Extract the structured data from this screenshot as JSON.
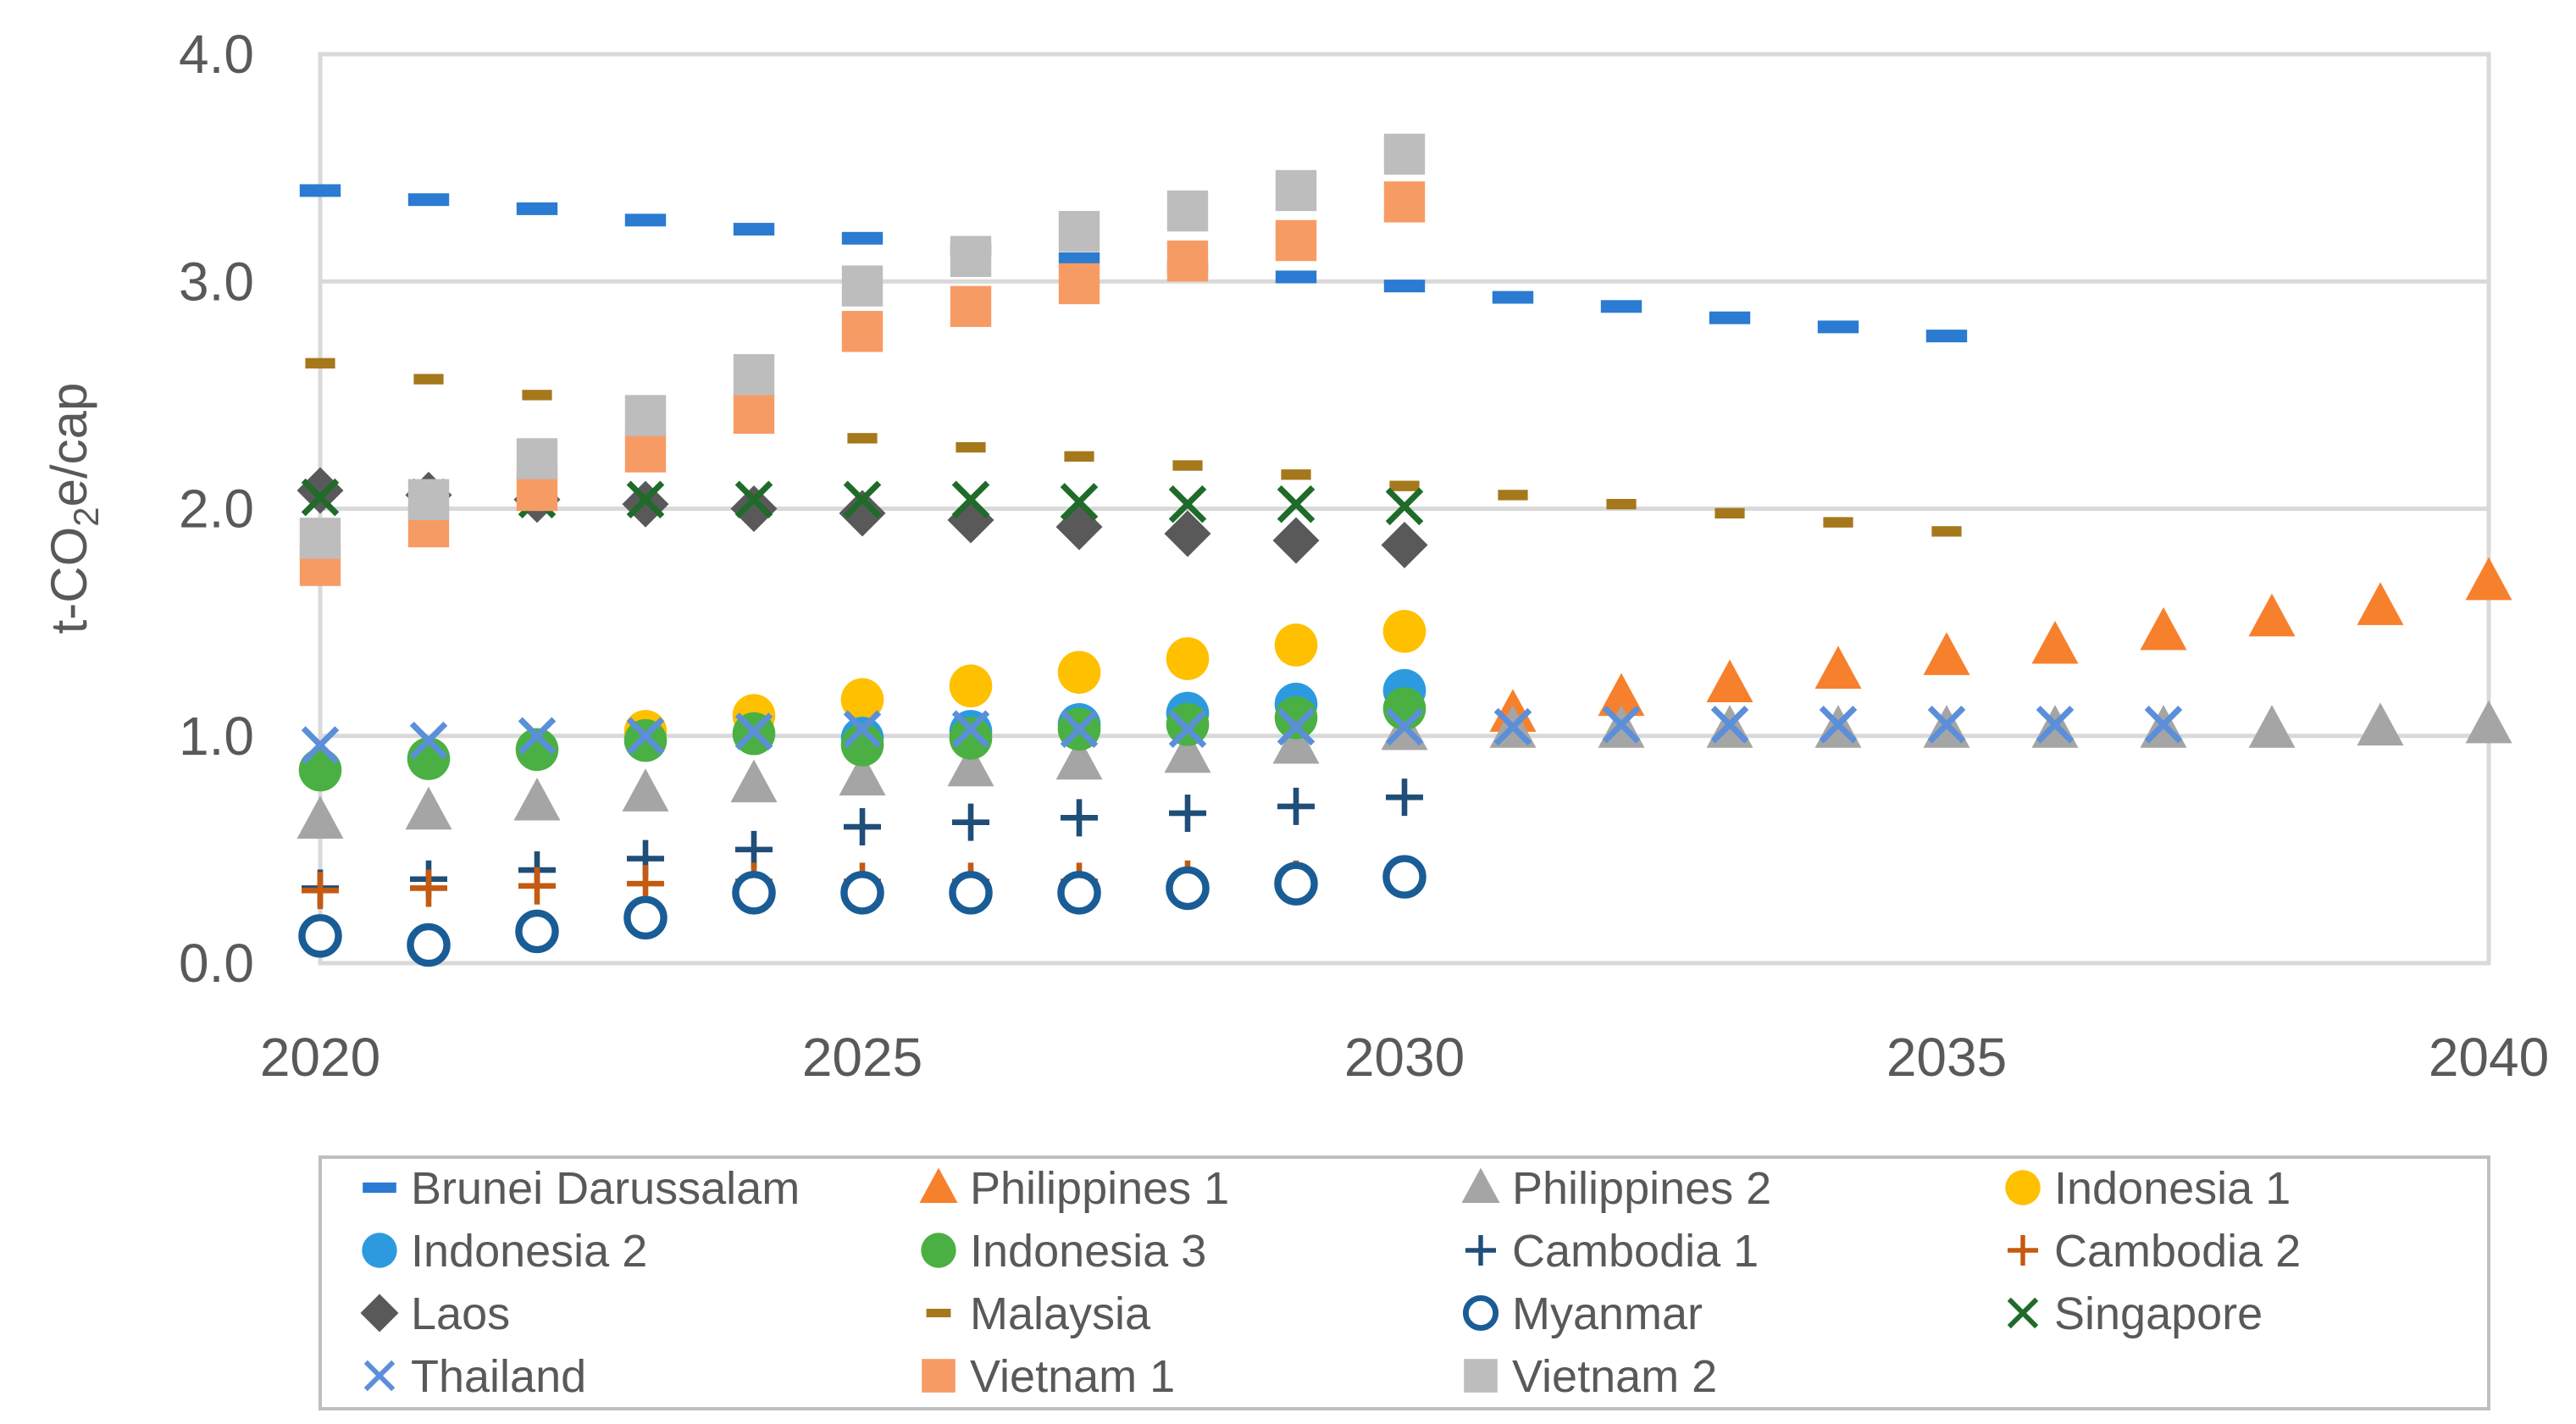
{
  "chart_data": {
    "type": "scatter",
    "title": "",
    "xlabel": "",
    "ylabel": "t-CO2e/cap",
    "ylabel_parts": {
      "pre": "t-CO",
      "sub": "2",
      "post": "e/cap"
    },
    "xlim": [
      2020,
      2040
    ],
    "ylim": [
      0,
      4
    ],
    "xticks": [
      "2020",
      "2025",
      "2030",
      "2035",
      "2040"
    ],
    "yticks": [
      "0.0",
      "1.0",
      "2.0",
      "3.0",
      "4.0"
    ],
    "grid": "horizontal",
    "legend_position": "bottom",
    "series": [
      {
        "name": "Brunei Darussalam",
        "marker": "dash",
        "color": "#2a7bd1",
        "x": [
          2020,
          2021,
          2022,
          2023,
          2024,
          2025,
          2026,
          2027,
          2028,
          2029,
          2030,
          2031,
          2032,
          2033,
          2034,
          2035
        ],
        "y": [
          3.4,
          3.36,
          3.32,
          3.27,
          3.23,
          3.19,
          3.14,
          3.1,
          3.06,
          3.02,
          2.98,
          2.93,
          2.89,
          2.84,
          2.8,
          2.76
        ]
      },
      {
        "name": "Philippines 1",
        "marker": "triangle",
        "color": "#f7802d",
        "x": [
          2031,
          2032,
          2033,
          2034,
          2035,
          2036,
          2037,
          2038,
          2039,
          2040
        ],
        "y": [
          1.1,
          1.17,
          1.23,
          1.29,
          1.35,
          1.4,
          1.46,
          1.52,
          1.57,
          1.68
        ]
      },
      {
        "name": "Philippines 2",
        "marker": "triangle",
        "color": "#a5a5a5",
        "x": [
          2020,
          2021,
          2022,
          2023,
          2024,
          2025,
          2026,
          2027,
          2028,
          2029,
          2030,
          2031,
          2032,
          2033,
          2034,
          2035,
          2036,
          2037,
          2038,
          2039,
          2040
        ],
        "y": [
          0.63,
          0.67,
          0.71,
          0.75,
          0.79,
          0.82,
          0.86,
          0.89,
          0.92,
          0.96,
          1.02,
          1.03,
          1.03,
          1.03,
          1.03,
          1.03,
          1.03,
          1.03,
          1.03,
          1.04,
          1.05
        ]
      },
      {
        "name": "Indonesia 1",
        "marker": "circle",
        "color": "#ffc000",
        "x": [
          2023,
          2024,
          2025,
          2026,
          2027,
          2028,
          2029,
          2030
        ],
        "y": [
          1.02,
          1.09,
          1.16,
          1.22,
          1.28,
          1.34,
          1.4,
          1.46
        ]
      },
      {
        "name": "Indonesia 2",
        "marker": "circle",
        "color": "#2d9ae0",
        "x": [
          2025,
          2026,
          2027,
          2028,
          2029,
          2030
        ],
        "y": [
          0.99,
          1.02,
          1.05,
          1.1,
          1.14,
          1.2
        ]
      },
      {
        "name": "Indonesia 3",
        "marker": "circle",
        "color": "#4bb043",
        "x": [
          2020,
          2021,
          2022,
          2023,
          2024,
          2025,
          2026,
          2027,
          2028,
          2029,
          2030
        ],
        "y": [
          0.85,
          0.9,
          0.94,
          0.98,
          1.01,
          0.96,
          0.99,
          1.03,
          1.05,
          1.08,
          1.12
        ]
      },
      {
        "name": "Cambodia 1",
        "marker": "plus",
        "color": "#1f4e79",
        "x": [
          2020,
          2021,
          2022,
          2023,
          2024,
          2025,
          2026,
          2027,
          2028,
          2029,
          2030
        ],
        "y": [
          0.33,
          0.37,
          0.41,
          0.46,
          0.5,
          0.6,
          0.62,
          0.64,
          0.66,
          0.69,
          0.73
        ]
      },
      {
        "name": "Cambodia 2",
        "marker": "plus",
        "color": "#c55a11",
        "x": [
          2020,
          2021,
          2022,
          2023,
          2024,
          2025,
          2026,
          2027,
          2028,
          2029,
          2030
        ],
        "y": [
          0.32,
          0.33,
          0.34,
          0.35,
          0.36,
          0.36,
          0.36,
          0.36,
          0.37,
          0.37,
          0.37
        ]
      },
      {
        "name": "Laos",
        "marker": "diamond",
        "color": "#595959",
        "x": [
          2020,
          2021,
          2022,
          2023,
          2024,
          2025,
          2026,
          2027,
          2028,
          2029,
          2030
        ],
        "y": [
          2.08,
          2.06,
          2.04,
          2.02,
          2.0,
          1.98,
          1.95,
          1.92,
          1.89,
          1.86,
          1.84
        ]
      },
      {
        "name": "Malaysia",
        "marker": "smalldash",
        "color": "#a5781b",
        "x": [
          2020,
          2021,
          2022,
          2023,
          2024,
          2025,
          2026,
          2027,
          2028,
          2029,
          2030,
          2031,
          2032,
          2033,
          2034,
          2035
        ],
        "y": [
          2.64,
          2.57,
          2.5,
          2.44,
          2.38,
          2.31,
          2.27,
          2.23,
          2.19,
          2.15,
          2.1,
          2.06,
          2.02,
          1.98,
          1.94,
          1.9
        ]
      },
      {
        "name": "Myanmar",
        "marker": "ring",
        "color": "#1a5c96",
        "x": [
          2020,
          2021,
          2022,
          2023,
          2024,
          2025,
          2026,
          2027,
          2028,
          2029,
          2030
        ],
        "y": [
          0.12,
          0.08,
          0.14,
          0.2,
          0.31,
          0.31,
          0.31,
          0.31,
          0.33,
          0.35,
          0.38
        ]
      },
      {
        "name": "Singapore",
        "marker": "x",
        "color": "#1e6b2a",
        "x": [
          2020,
          2021,
          2022,
          2023,
          2024,
          2025,
          2026,
          2027,
          2028,
          2029,
          2030
        ],
        "y": [
          2.05,
          2.05,
          2.04,
          2.04,
          2.04,
          2.04,
          2.04,
          2.03,
          2.02,
          2.02,
          2.01
        ]
      },
      {
        "name": "Thailand",
        "marker": "x",
        "color": "#5b8fd9",
        "x": [
          2020,
          2021,
          2022,
          2023,
          2024,
          2025,
          2026,
          2027,
          2028,
          2029,
          2030,
          2031,
          2032,
          2033,
          2034,
          2035,
          2036,
          2037
        ],
        "y": [
          0.96,
          0.98,
          1.0,
          1.0,
          1.02,
          1.03,
          1.03,
          1.03,
          1.03,
          1.04,
          1.04,
          1.04,
          1.05,
          1.05,
          1.05,
          1.05,
          1.05,
          1.05
        ]
      },
      {
        "name": "Vietnam 1",
        "marker": "square",
        "color": "#f79b65",
        "x": [
          2020,
          2021,
          2022,
          2023,
          2024,
          2025,
          2026,
          2027,
          2028,
          2029,
          2030
        ],
        "y": [
          1.75,
          1.92,
          2.08,
          2.25,
          2.42,
          2.78,
          2.89,
          2.99,
          3.09,
          3.18,
          3.35
        ]
      },
      {
        "name": "Vietnam 2",
        "marker": "square",
        "color": "#bdbdbd",
        "x": [
          2020,
          2021,
          2022,
          2023,
          2024,
          2025,
          2026,
          2027,
          2028,
          2029,
          2030
        ],
        "y": [
          1.87,
          2.04,
          2.22,
          2.41,
          2.59,
          2.98,
          3.11,
          3.22,
          3.31,
          3.4,
          3.56
        ]
      }
    ]
  }
}
